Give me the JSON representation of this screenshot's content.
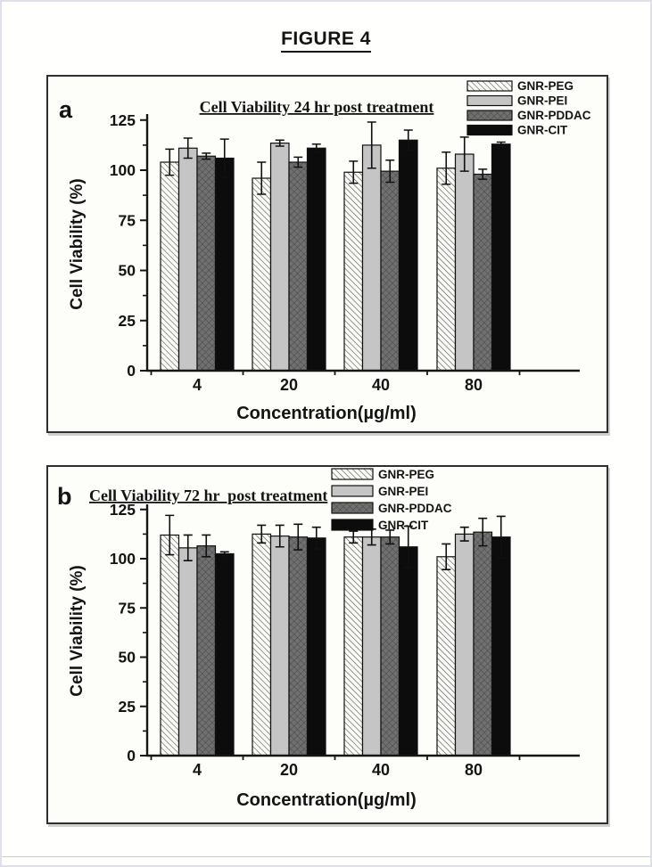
{
  "page": {
    "figure_title": "FIGURE 4",
    "border_color": "#dfe0ea",
    "text_color": "#141414",
    "panel_border_color": "#303030"
  },
  "chart_data": [
    {
      "type": "bar",
      "panel_label": "a",
      "title": "Cell Viability 24 hr post treatment",
      "xlabel": "Concentration(µg/ml)",
      "ylabel": "Cell Viability (%)",
      "categories": [
        "4",
        "20",
        "40",
        "80"
      ],
      "y_ticks": [
        0,
        25,
        50,
        75,
        100,
        125
      ],
      "y_minor_step": 12.5,
      "ylim": [
        0,
        130
      ],
      "grid": false,
      "legend_position": "top-right",
      "series": [
        {
          "name": "GNR-PEG",
          "pattern": "diagonal",
          "fill": "#fafaf7",
          "values": [
            104,
            96,
            99,
            101
          ],
          "errors": [
            6.5,
            8,
            5.5,
            8
          ]
        },
        {
          "name": "GNR-PEI",
          "pattern": "solid",
          "fill": "#c5c5c5",
          "values": [
            111,
            113.5,
            112.5,
            108
          ],
          "errors": [
            5,
            1.5,
            11.5,
            8.5
          ]
        },
        {
          "name": "GNR-PDDAC",
          "pattern": "crosshatch",
          "fill": "#707070",
          "values": [
            107,
            104,
            99.5,
            98
          ],
          "errors": [
            1.5,
            2.5,
            5.5,
            2.5
          ]
        },
        {
          "name": "GNR-CIT",
          "pattern": "solid",
          "fill": "#0c0c0c",
          "values": [
            106,
            111,
            115,
            113
          ],
          "errors": [
            9.5,
            2,
            5,
            1
          ]
        }
      ]
    },
    {
      "type": "bar",
      "panel_label": "b",
      "title": "Cell Viability 72 hr  post treatment",
      "xlabel": "Concentration(µg/ml)",
      "ylabel": "Cell Viability (%)",
      "categories": [
        "4",
        "20",
        "40",
        "80"
      ],
      "y_ticks": [
        0,
        25,
        50,
        75,
        100,
        125
      ],
      "y_minor_step": 12.5,
      "ylim": [
        0,
        130
      ],
      "grid": false,
      "legend_position": "top-center",
      "series": [
        {
          "name": "GNR-PEG",
          "pattern": "diagonal",
          "fill": "#fafaf7",
          "values": [
            112,
            112.5,
            111,
            101
          ],
          "errors": [
            10,
            4.5,
            3,
            6.5
          ]
        },
        {
          "name": "GNR-PEI",
          "pattern": "solid",
          "fill": "#c5c5c5",
          "values": [
            105.5,
            111.5,
            111,
            112.5
          ],
          "errors": [
            6.5,
            5.5,
            4,
            3.5
          ]
        },
        {
          "name": "GNR-PDDAC",
          "pattern": "crosshatch",
          "fill": "#707070",
          "values": [
            106.5,
            111,
            111,
            113.5
          ],
          "errors": [
            5.5,
            6.5,
            3.5,
            7
          ]
        },
        {
          "name": "GNR-CIT",
          "pattern": "solid",
          "fill": "#0c0c0c",
          "values": [
            102.5,
            110.5,
            106,
            111
          ],
          "errors": [
            1,
            5.5,
            10.5,
            10.5
          ]
        }
      ]
    }
  ]
}
